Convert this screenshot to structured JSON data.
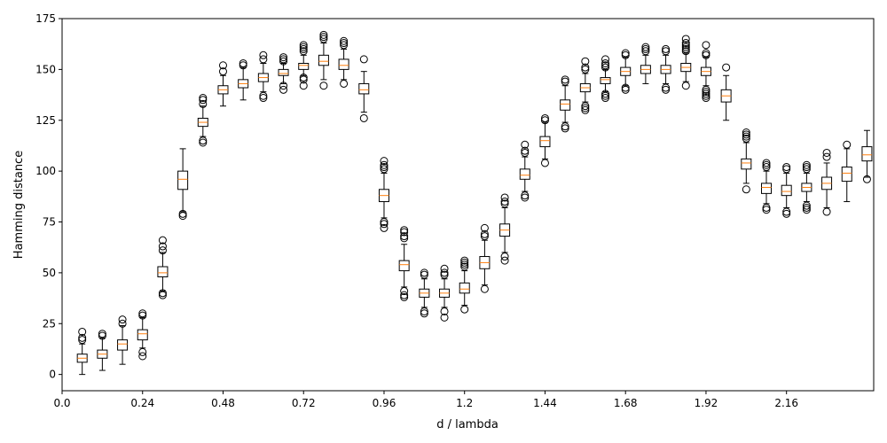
{
  "chart_data": {
    "type": "boxplot",
    "xlabel": "d / lambda",
    "ylabel": "Hamming distance",
    "xlim": [
      0.0,
      2.42
    ],
    "ylim": [
      -8,
      175
    ],
    "xticks": [
      0.0,
      0.24,
      0.48,
      0.72,
      0.96,
      1.2,
      1.44,
      1.68,
      1.92,
      2.16
    ],
    "xtick_labels": [
      "0.0",
      "0.24",
      "0.48",
      "0.72",
      "0.96",
      "1.2",
      "1.44",
      "1.68",
      "1.92",
      "2.16"
    ],
    "yticks": [
      0,
      25,
      50,
      75,
      100,
      125,
      150,
      175
    ],
    "ytick_labels": [
      "0",
      "25",
      "50",
      "75",
      "100",
      "125",
      "150",
      "175"
    ],
    "grid": false,
    "colors": {
      "box": "#000000",
      "median": "#ff7f0e",
      "axis": "#000000"
    },
    "boxes": [
      {
        "x": 0.06,
        "q1": 6,
        "median": 8,
        "q3": 10,
        "wlo": 0,
        "whi": 15,
        "outliers": [
          17,
          18,
          21
        ]
      },
      {
        "x": 0.12,
        "q1": 8,
        "median": 10,
        "q3": 12,
        "wlo": 2,
        "whi": 18,
        "outliers": [
          19,
          20
        ]
      },
      {
        "x": 0.18,
        "q1": 12,
        "median": 15,
        "q3": 17,
        "wlo": 5,
        "whi": 24,
        "outliers": [
          25,
          27
        ]
      },
      {
        "x": 0.24,
        "q1": 17,
        "median": 20,
        "q3": 22,
        "wlo": 13,
        "whi": 28,
        "outliers": [
          9,
          11,
          29,
          30
        ]
      },
      {
        "x": 0.3,
        "q1": 48,
        "median": 50,
        "q3": 53,
        "wlo": 41,
        "whi": 60,
        "outliers": [
          39,
          40,
          61,
          63,
          66
        ]
      },
      {
        "x": 0.36,
        "q1": 91,
        "median": 96,
        "q3": 100,
        "wlo": 80,
        "whi": 111,
        "outliers": [
          78,
          79
        ]
      },
      {
        "x": 0.42,
        "q1": 122,
        "median": 124,
        "q3": 126,
        "wlo": 117,
        "whi": 132,
        "outliers": [
          114,
          115,
          133,
          135,
          136
        ]
      },
      {
        "x": 0.48,
        "q1": 138,
        "median": 140,
        "q3": 142,
        "wlo": 132,
        "whi": 147,
        "outliers": [
          149,
          152
        ]
      },
      {
        "x": 0.54,
        "q1": 141,
        "median": 143,
        "q3": 145,
        "wlo": 135,
        "whi": 151,
        "outliers": [
          152,
          153
        ]
      },
      {
        "x": 0.6,
        "q1": 144,
        "median": 146,
        "q3": 148,
        "wlo": 139,
        "whi": 153,
        "outliers": [
          136,
          137,
          155,
          157
        ]
      },
      {
        "x": 0.66,
        "q1": 147,
        "median": 148,
        "q3": 150,
        "wlo": 143,
        "whi": 153,
        "outliers": [
          140,
          142,
          154,
          155,
          156
        ]
      },
      {
        "x": 0.72,
        "q1": 150,
        "median": 152,
        "q3": 153,
        "wlo": 147,
        "whi": 157,
        "outliers": [
          142,
          145,
          146,
          159,
          160,
          161,
          162
        ]
      },
      {
        "x": 0.78,
        "q1": 152,
        "median": 154,
        "q3": 157,
        "wlo": 145,
        "whi": 163,
        "outliers": [
          142,
          165,
          166,
          167
        ]
      },
      {
        "x": 0.84,
        "q1": 150,
        "median": 152,
        "q3": 155,
        "wlo": 145,
        "whi": 160,
        "outliers": [
          143,
          162,
          163,
          164
        ]
      },
      {
        "x": 0.9,
        "q1": 138,
        "median": 140,
        "q3": 143,
        "wlo": 129,
        "whi": 149,
        "outliers": [
          126,
          155
        ]
      },
      {
        "x": 0.96,
        "q1": 85,
        "median": 88,
        "q3": 91,
        "wlo": 77,
        "whi": 99,
        "outliers": [
          72,
          74,
          75,
          101,
          102,
          103,
          105
        ]
      },
      {
        "x": 1.02,
        "q1": 51,
        "median": 54,
        "q3": 56,
        "wlo": 43,
        "whi": 64,
        "outliers": [
          38,
          39,
          41,
          67,
          68,
          70,
          71
        ]
      },
      {
        "x": 1.08,
        "q1": 38,
        "median": 40,
        "q3": 42,
        "wlo": 33,
        "whi": 47,
        "outliers": [
          30,
          31,
          49,
          50
        ]
      },
      {
        "x": 1.14,
        "q1": 38,
        "median": 40,
        "q3": 42,
        "wlo": 33,
        "whi": 47,
        "outliers": [
          28,
          31,
          49,
          50,
          52
        ]
      },
      {
        "x": 1.2,
        "q1": 40,
        "median": 42,
        "q3": 45,
        "wlo": 34,
        "whi": 51,
        "outliers": [
          32,
          53,
          54,
          55,
          56
        ]
      },
      {
        "x": 1.26,
        "q1": 52,
        "median": 55,
        "q3": 58,
        "wlo": 44,
        "whi": 66,
        "outliers": [
          42,
          68,
          69,
          72
        ]
      },
      {
        "x": 1.32,
        "q1": 68,
        "median": 71,
        "q3": 74,
        "wlo": 60,
        "whi": 82,
        "outliers": [
          56,
          58,
          84,
          85,
          87
        ]
      },
      {
        "x": 1.38,
        "q1": 96,
        "median": 98,
        "q3": 101,
        "wlo": 90,
        "whi": 107,
        "outliers": [
          87,
          88,
          109,
          110,
          113
        ]
      },
      {
        "x": 1.44,
        "q1": 112,
        "median": 115,
        "q3": 117,
        "wlo": 106,
        "whi": 124,
        "outliers": [
          104,
          125,
          126
        ]
      },
      {
        "x": 1.5,
        "q1": 130,
        "median": 133,
        "q3": 135,
        "wlo": 124,
        "whi": 142,
        "outliers": [
          121,
          122,
          144,
          145
        ]
      },
      {
        "x": 1.56,
        "q1": 139,
        "median": 141,
        "q3": 143,
        "wlo": 134,
        "whi": 148,
        "outliers": [
          130,
          131,
          132,
          150,
          151,
          154
        ]
      },
      {
        "x": 1.62,
        "q1": 143,
        "median": 145,
        "q3": 146,
        "wlo": 139,
        "whi": 150,
        "outliers": [
          136,
          137,
          138,
          151,
          152,
          153,
          155
        ]
      },
      {
        "x": 1.68,
        "q1": 147,
        "median": 149,
        "q3": 151,
        "wlo": 142,
        "whi": 156,
        "outliers": [
          140,
          141,
          157,
          158
        ]
      },
      {
        "x": 1.74,
        "q1": 148,
        "median": 150,
        "q3": 152,
        "wlo": 143,
        "whi": 157,
        "outliers": [
          159,
          160,
          161
        ]
      },
      {
        "x": 1.8,
        "q1": 148,
        "median": 150,
        "q3": 152,
        "wlo": 143,
        "whi": 157,
        "outliers": [
          140,
          141,
          159,
          160
        ]
      },
      {
        "x": 1.86,
        "q1": 149,
        "median": 151,
        "q3": 153,
        "wlo": 144,
        "whi": 158,
        "outliers": [
          142,
          159,
          160,
          161,
          162,
          163,
          165
        ]
      },
      {
        "x": 1.92,
        "q1": 147,
        "median": 149,
        "q3": 151,
        "wlo": 142,
        "whi": 156,
        "outliers": [
          136,
          137,
          138,
          139,
          140,
          157,
          158,
          162
        ]
      },
      {
        "x": 1.98,
        "q1": 134,
        "median": 137,
        "q3": 140,
        "wlo": 125,
        "whi": 147,
        "outliers": [
          151
        ]
      },
      {
        "x": 2.04,
        "q1": 101,
        "median": 104,
        "q3": 106,
        "wlo": 94,
        "whi": 114,
        "outliers": [
          91,
          116,
          117,
          118,
          119
        ]
      },
      {
        "x": 2.1,
        "q1": 89,
        "median": 92,
        "q3": 94,
        "wlo": 84,
        "whi": 100,
        "outliers": [
          81,
          82,
          102,
          103,
          104
        ]
      },
      {
        "x": 2.16,
        "q1": 88,
        "median": 90,
        "q3": 93,
        "wlo": 82,
        "whi": 99,
        "outliers": [
          79,
          80,
          101,
          102
        ]
      },
      {
        "x": 2.22,
        "q1": 90,
        "median": 92,
        "q3": 94,
        "wlo": 85,
        "whi": 99,
        "outliers": [
          81,
          82,
          83,
          101,
          102,
          103
        ]
      },
      {
        "x": 2.28,
        "q1": 91,
        "median": 94,
        "q3": 97,
        "wlo": 82,
        "whi": 104,
        "outliers": [
          80,
          107,
          109
        ]
      },
      {
        "x": 2.34,
        "q1": 95,
        "median": 99,
        "q3": 102,
        "wlo": 85,
        "whi": 111,
        "outliers": [
          113
        ]
      },
      {
        "x": 2.4,
        "q1": 105,
        "median": 108,
        "q3": 112,
        "wlo": 97,
        "whi": 120,
        "outliers": [
          96
        ]
      }
    ]
  }
}
